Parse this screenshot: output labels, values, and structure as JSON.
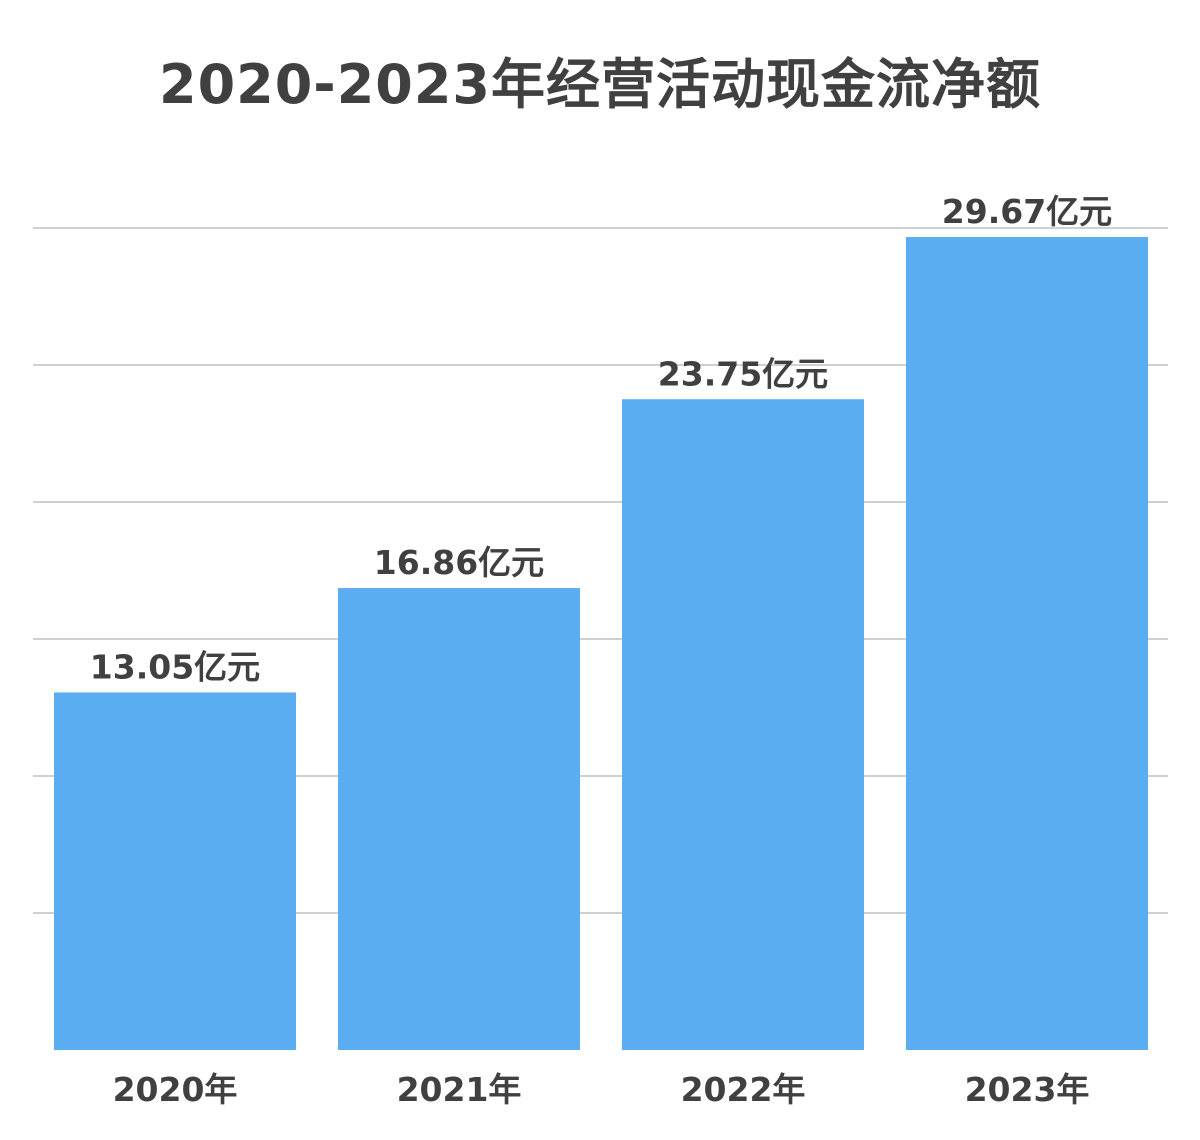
{
  "chart_data": {
    "type": "bar",
    "title": "2020-2023年经营活动现金流净额",
    "categories": [
      "2020年",
      "2021年",
      "2022年",
      "2023年"
    ],
    "values": [
      13.05,
      16.86,
      23.75,
      29.67
    ],
    "data_labels": [
      "13.05亿元",
      "16.86亿元",
      "23.75亿元",
      "29.67亿元"
    ],
    "unit": "亿元",
    "ylim": [
      0,
      30
    ],
    "grid": true,
    "legend": "none",
    "bar_color": "#5badf2",
    "grid_color": "#d0d0d0"
  }
}
